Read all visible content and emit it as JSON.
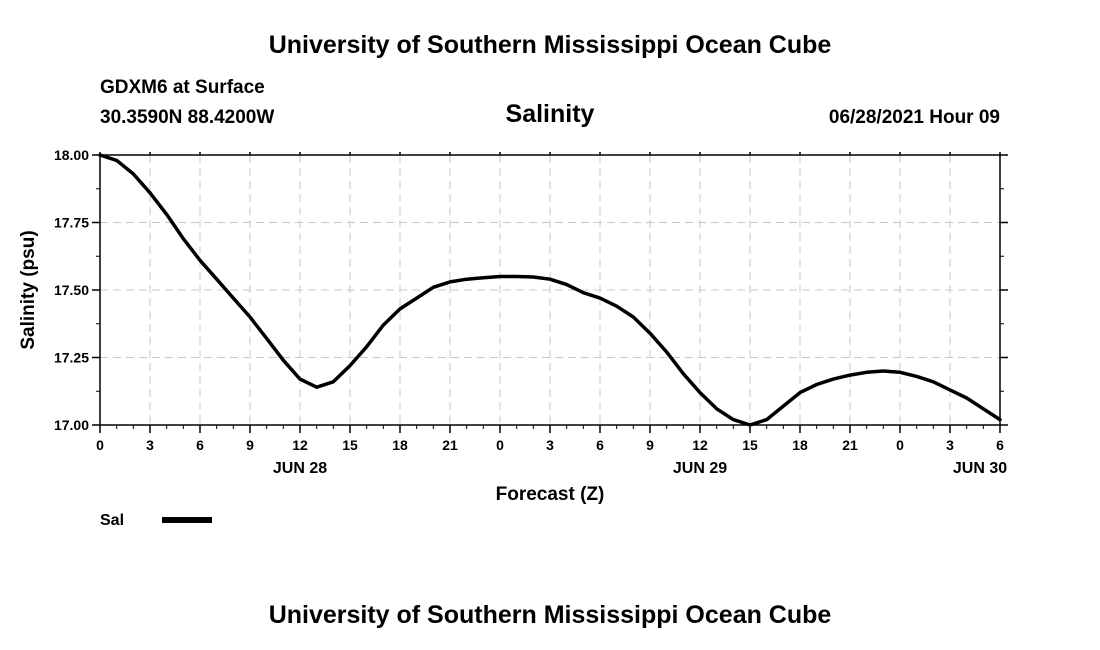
{
  "page": {
    "title_top": "University of Southern Mississippi Ocean Cube",
    "title_bottom": "University of Southern Mississippi Ocean Cube",
    "station": "GDXM6 at Surface",
    "coords": "30.3590N  88.4200W",
    "datetime": "06/28/2021 Hour 09"
  },
  "chart_data": {
    "type": "line",
    "title": "Salinity",
    "ylabel": "Salinity (psu)",
    "xlabel": "Forecast (Z)",
    "ylim": [
      17.0,
      18.0
    ],
    "xlim": [
      0,
      54
    ],
    "grid": true,
    "yticks": [
      17.0,
      17.25,
      17.5,
      17.75,
      18.0
    ],
    "ytick_labels": [
      "17.00",
      "17.25",
      "17.50",
      "17.75",
      "18.00"
    ],
    "xticks": [
      0,
      3,
      6,
      9,
      12,
      15,
      18,
      21,
      24,
      27,
      30,
      33,
      36,
      39,
      42,
      45,
      48,
      51,
      54
    ],
    "xtick_labels": [
      "0",
      "3",
      "6",
      "9",
      "12",
      "15",
      "18",
      "21",
      "0",
      "3",
      "6",
      "9",
      "12",
      "15",
      "18",
      "21",
      "0",
      "3",
      "6"
    ],
    "date_labels": [
      {
        "x": 12,
        "label": "JUN 28"
      },
      {
        "x": 36,
        "label": "JUN 29"
      },
      {
        "x": 52.8,
        "label": "JUN 30"
      }
    ],
    "legend": {
      "placement": "bottom-left",
      "entries": [
        "Sal"
      ]
    },
    "series": [
      {
        "name": "Sal",
        "x": [
          0,
          1,
          2,
          3,
          4,
          5,
          6,
          7,
          8,
          9,
          10,
          11,
          12,
          13,
          14,
          15,
          16,
          17,
          18,
          19,
          20,
          21,
          22,
          23,
          24,
          25,
          26,
          27,
          28,
          29,
          30,
          31,
          32,
          33,
          34,
          35,
          36,
          37,
          38,
          39,
          40,
          41,
          42,
          43,
          44,
          45,
          46,
          47,
          48,
          49,
          50,
          51,
          52,
          53,
          54
        ],
        "values": [
          18.0,
          17.98,
          17.93,
          17.86,
          17.78,
          17.69,
          17.61,
          17.54,
          17.47,
          17.4,
          17.32,
          17.24,
          17.17,
          17.14,
          17.16,
          17.22,
          17.29,
          17.37,
          17.43,
          17.47,
          17.51,
          17.53,
          17.54,
          17.545,
          17.55,
          17.55,
          17.548,
          17.54,
          17.52,
          17.49,
          17.47,
          17.44,
          17.4,
          17.34,
          17.27,
          17.19,
          17.12,
          17.06,
          17.02,
          17.0,
          17.02,
          17.07,
          17.12,
          17.15,
          17.17,
          17.185,
          17.195,
          17.2,
          17.195,
          17.18,
          17.16,
          17.13,
          17.1,
          17.06,
          17.02
        ]
      }
    ]
  }
}
